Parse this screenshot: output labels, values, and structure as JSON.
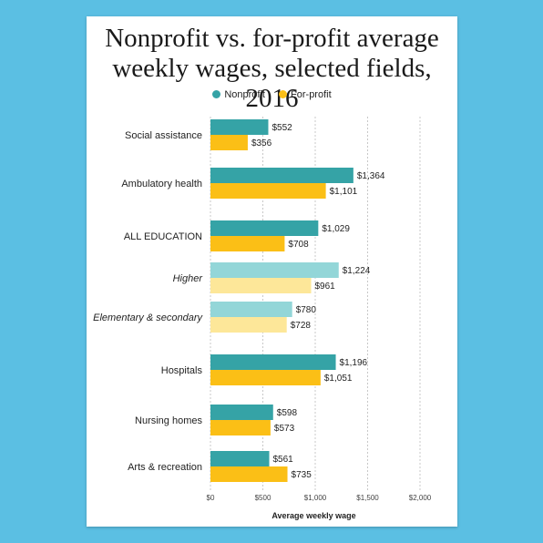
{
  "colors": {
    "nonprofit": "#35a3a6",
    "forprofit": "#fbbf16",
    "nonprofit_light": "#93d6d8",
    "forprofit_light": "#fde799",
    "grid": "#c8c8c8",
    "background": "#5bbfe3"
  },
  "chart_data": {
    "type": "bar",
    "orientation": "horizontal",
    "title": "Nonprofit vs. for-profit average weekly wages, selected fields, 2016",
    "xlabel": "Average weekly wage",
    "ylabel": "",
    "xlim": [
      0,
      2000
    ],
    "xticks": [
      0,
      500,
      1000,
      1500,
      2000
    ],
    "xtick_labels": [
      "$0",
      "$500",
      "$1,000",
      "$1,500",
      "$2,000"
    ],
    "grid": "vertical dashed",
    "legend_position": "top",
    "categories": [
      "Social assistance",
      "Ambulatory health",
      "ALL EDUCATION",
      "Higher",
      "Elementary & secondary",
      "Hospitals",
      "Nursing homes",
      "Arts & recreation"
    ],
    "subcategories": [
      "Higher",
      "Elementary & secondary"
    ],
    "series": [
      {
        "name": "Nonprofit",
        "values": [
          552,
          1364,
          1029,
          1224,
          780,
          1196,
          598,
          561
        ],
        "value_labels": [
          "$552",
          "$1,364",
          "$1,029",
          "$1,224",
          "$780",
          "$1,196",
          "$598",
          "$561"
        ]
      },
      {
        "name": "For-profit",
        "values": [
          356,
          1101,
          708,
          961,
          728,
          1051,
          573,
          735
        ],
        "value_labels": [
          "$356",
          "$1,101",
          "$708",
          "$961",
          "$728",
          "$1,051",
          "$573",
          "$735"
        ]
      }
    ]
  }
}
